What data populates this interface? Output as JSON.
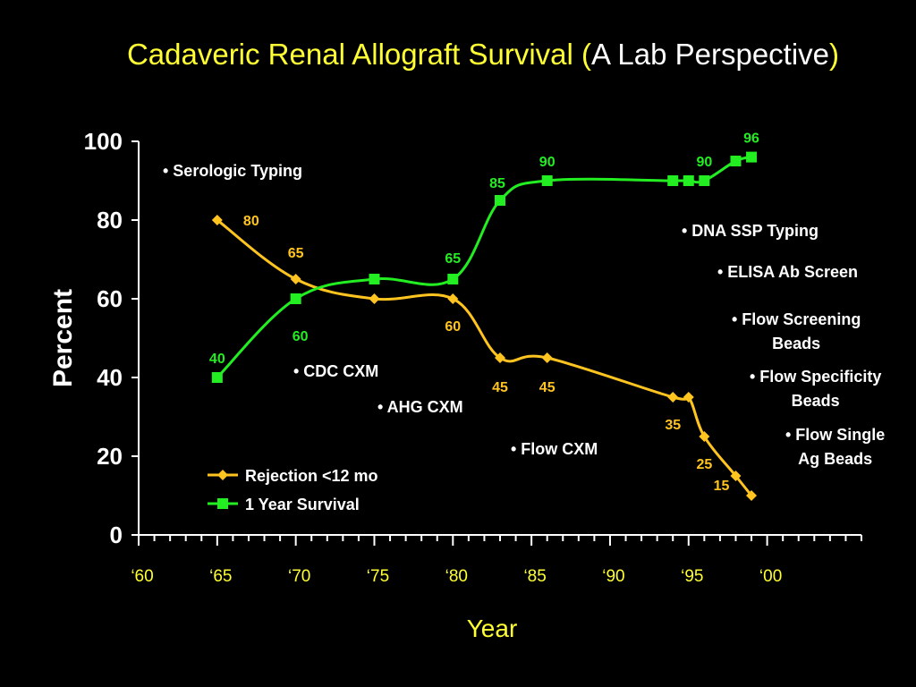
{
  "slide": {
    "title_main": "Cadaveric Renal Allograft Survival ",
    "title_open": "(",
    "title_sub": "A Lab Perspective",
    "title_close": ")"
  },
  "colors": {
    "background": "#000000",
    "title": "#ffff33",
    "rejection": "#ffc41f",
    "survival": "#22ee22",
    "axis": "#ffffff",
    "annotation_white": "#ffffff",
    "annotation_yellow": "#ffff33"
  },
  "annotations": {
    "serologic": "• Serologic Typing",
    "cdc": "• CDC CXM",
    "ahg": "• AHG CXM",
    "flowcxm": "• Flow CXM",
    "dna": "• DNA SSP Typing",
    "elisa": "• ELISA Ab Screen",
    "flowscreen": "• Flow Screening\nBeads",
    "flowspec": "• Flow Specificity\nBeads",
    "flowsingle": "• Flow Single\nAg Beads"
  },
  "chart_data": {
    "type": "line",
    "title": "Cadaveric Renal Allograft Survival (A Lab Perspective)",
    "xlabel": "Year",
    "ylabel": "Percent",
    "xlim": [
      1960,
      2006
    ],
    "ylim": [
      0,
      100
    ],
    "yticks": [
      0,
      20,
      40,
      60,
      80,
      100
    ],
    "xticks": [
      1960,
      1965,
      1970,
      1975,
      1980,
      1985,
      1990,
      1995,
      2000
    ],
    "xtick_labels": [
      "‘60",
      "‘65",
      "‘70",
      "‘75",
      "‘80",
      "‘85",
      "‘90",
      "‘95",
      "‘00"
    ],
    "legend": "bottom-left",
    "series": [
      {
        "name": "Rejection <12 mo",
        "color": "#ffc41f",
        "marker": "diamond",
        "x": [
          1965,
          1970,
          1975,
          1980,
          1983,
          1986,
          1994,
          1995,
          1996,
          1998,
          1999
        ],
        "y": [
          80,
          65,
          60,
          60,
          45,
          45,
          35,
          35,
          25,
          15,
          10
        ],
        "labels": [
          "80",
          "65",
          "",
          "60",
          "45",
          "45",
          "35",
          "",
          "25",
          "15",
          ""
        ]
      },
      {
        "name": "1 Year Survival",
        "color": "#22ee22",
        "marker": "square",
        "x": [
          1965,
          1970,
          1975,
          1980,
          1983,
          1986,
          1994,
          1995,
          1996,
          1998,
          1999
        ],
        "y": [
          40,
          60,
          65,
          65,
          85,
          90,
          90,
          90,
          90,
          95,
          96
        ],
        "labels": [
          "40",
          "60",
          "",
          "65",
          "85",
          "90",
          "",
          "",
          "90",
          "",
          "96"
        ]
      }
    ]
  }
}
